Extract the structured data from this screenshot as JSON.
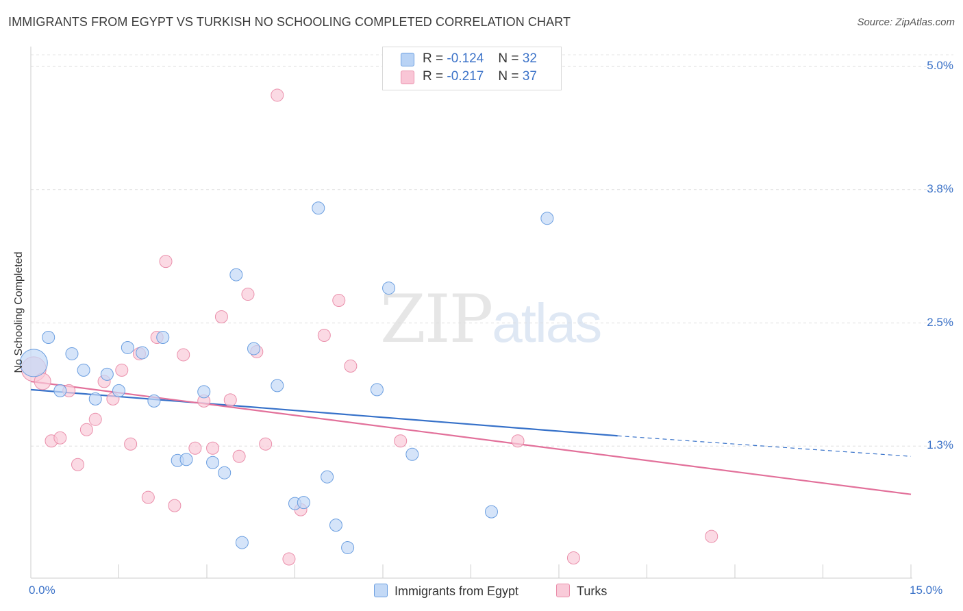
{
  "title": "IMMIGRANTS FROM EGYPT VS TURKISH NO SCHOOLING COMPLETED CORRELATION CHART",
  "source": "Source: ZipAtlas.com",
  "watermark": {
    "zip": "ZIP",
    "atlas": "atlas"
  },
  "legend": {
    "r_label": "R =",
    "n_label": "N =",
    "rows": [
      {
        "r": "-0.124",
        "n": "32",
        "color": "#b9d3f5",
        "border": "#6a9ee0"
      },
      {
        "r": "-0.217",
        "n": "37",
        "color": "#f9c6d6",
        "border": "#ea8fab"
      }
    ]
  },
  "bottom_legend": [
    {
      "label": "Immigrants from Egypt",
      "color": "#c3d9f6",
      "border": "#6a9ee0"
    },
    {
      "label": "Turks",
      "color": "#f9cbd9",
      "border": "#ea8fab"
    }
  ],
  "chart_data": {
    "type": "scatter",
    "title": "IMMIGRANTS FROM EGYPT VS TURKISH NO SCHOOLING COMPLETED CORRELATION CHART",
    "xlabel": "",
    "ylabel": "No Schooling Completed",
    "xlim": [
      0,
      15
    ],
    "ylim": [
      0,
      5.2
    ],
    "x_tick_labels": [
      "0.0%",
      "15.0%"
    ],
    "y_ticks": [
      1.3,
      2.5,
      3.8,
      5.0
    ],
    "y_tick_labels": [
      "1.3%",
      "2.5%",
      "3.8%",
      "5.0%"
    ],
    "grid": "horizontal dashed",
    "legend_position": "top-center",
    "series": [
      {
        "name": "Immigrants from Egypt",
        "color": "#6a9ee0",
        "fill": "#c3d9f6",
        "line_color": "#3671c9",
        "trend": {
          "x0": 0,
          "y0": 1.85,
          "x1": 10.0,
          "y1": 1.4,
          "dash_x1": 15.0,
          "dash_y1": 1.2
        },
        "points": [
          {
            "x": 0.05,
            "y": 2.11,
            "r": 20
          },
          {
            "x": 0.3,
            "y": 2.36
          },
          {
            "x": 0.5,
            "y": 1.84
          },
          {
            "x": 0.7,
            "y": 2.2
          },
          {
            "x": 0.9,
            "y": 2.04
          },
          {
            "x": 1.1,
            "y": 1.76
          },
          {
            "x": 1.3,
            "y": 2.0
          },
          {
            "x": 1.5,
            "y": 1.84
          },
          {
            "x": 1.65,
            "y": 2.26
          },
          {
            "x": 1.9,
            "y": 2.21
          },
          {
            "x": 2.1,
            "y": 1.74
          },
          {
            "x": 2.25,
            "y": 2.36
          },
          {
            "x": 2.5,
            "y": 1.16
          },
          {
            "x": 2.65,
            "y": 1.17
          },
          {
            "x": 2.95,
            "y": 1.83
          },
          {
            "x": 3.1,
            "y": 1.14
          },
          {
            "x": 3.3,
            "y": 1.04
          },
          {
            "x": 3.5,
            "y": 2.97
          },
          {
            "x": 3.6,
            "y": 0.36
          },
          {
            "x": 3.8,
            "y": 2.25
          },
          {
            "x": 4.2,
            "y": 1.89
          },
          {
            "x": 4.5,
            "y": 0.74
          },
          {
            "x": 4.65,
            "y": 0.75
          },
          {
            "x": 4.9,
            "y": 3.62
          },
          {
            "x": 5.05,
            "y": 1.0
          },
          {
            "x": 5.2,
            "y": 0.53
          },
          {
            "x": 5.4,
            "y": 0.31
          },
          {
            "x": 5.9,
            "y": 1.85
          },
          {
            "x": 6.1,
            "y": 2.84
          },
          {
            "x": 6.5,
            "y": 1.22
          },
          {
            "x": 7.85,
            "y": 0.66
          },
          {
            "x": 8.8,
            "y": 3.52
          }
        ]
      },
      {
        "name": "Turks",
        "color": "#ea8fab",
        "fill": "#f9cbd9",
        "line_color": "#e2709a",
        "trend": {
          "x0": 0,
          "y0": 1.93,
          "x1": 15.0,
          "y1": 0.83
        },
        "points": [
          {
            "x": 0.05,
            "y": 2.05,
            "r": 18
          },
          {
            "x": 0.2,
            "y": 1.93,
            "r": 12
          },
          {
            "x": 0.35,
            "y": 1.35
          },
          {
            "x": 0.5,
            "y": 1.38
          },
          {
            "x": 0.65,
            "y": 1.84
          },
          {
            "x": 0.8,
            "y": 1.12
          },
          {
            "x": 0.95,
            "y": 1.46
          },
          {
            "x": 1.1,
            "y": 1.56
          },
          {
            "x": 1.25,
            "y": 1.93
          },
          {
            "x": 1.4,
            "y": 1.76
          },
          {
            "x": 1.55,
            "y": 2.04
          },
          {
            "x": 1.7,
            "y": 1.32
          },
          {
            "x": 1.85,
            "y": 2.2
          },
          {
            "x": 2.0,
            "y": 0.8
          },
          {
            "x": 2.15,
            "y": 2.36
          },
          {
            "x": 2.3,
            "y": 3.1
          },
          {
            "x": 2.45,
            "y": 0.72
          },
          {
            "x": 2.6,
            "y": 2.19
          },
          {
            "x": 2.8,
            "y": 1.28
          },
          {
            "x": 2.95,
            "y": 1.74
          },
          {
            "x": 3.1,
            "y": 1.28
          },
          {
            "x": 3.25,
            "y": 2.56
          },
          {
            "x": 3.4,
            "y": 1.75
          },
          {
            "x": 3.55,
            "y": 1.2
          },
          {
            "x": 3.7,
            "y": 2.78
          },
          {
            "x": 3.85,
            "y": 2.22
          },
          {
            "x": 4.0,
            "y": 1.32
          },
          {
            "x": 4.2,
            "y": 4.72
          },
          {
            "x": 4.4,
            "y": 0.2
          },
          {
            "x": 4.6,
            "y": 0.68
          },
          {
            "x": 5.0,
            "y": 2.38
          },
          {
            "x": 5.25,
            "y": 2.72
          },
          {
            "x": 5.45,
            "y": 2.08
          },
          {
            "x": 6.3,
            "y": 1.35
          },
          {
            "x": 8.3,
            "y": 1.35
          },
          {
            "x": 9.25,
            "y": 0.21
          },
          {
            "x": 11.6,
            "y": 0.42
          }
        ]
      }
    ]
  }
}
